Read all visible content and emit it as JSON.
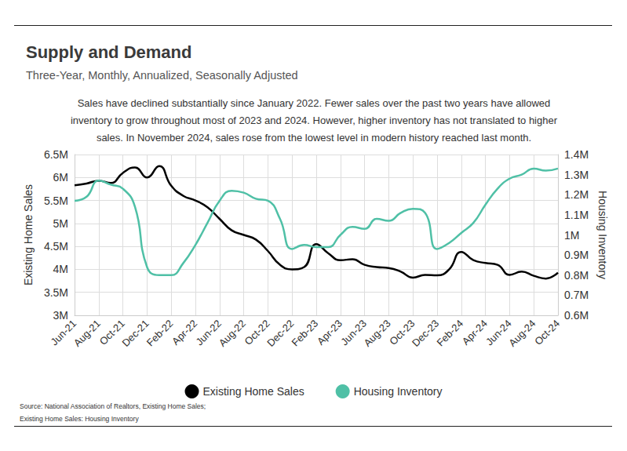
{
  "chart_data": {
    "type": "line",
    "title": "Supply and Demand",
    "subtitle": "Three-Year, Monthly, Annualized, Seasonally Adjusted",
    "description": "Sales have declined substantially since January 2022. Fewer sales over the past two years have allowed inventory to grow throughout most of 2023 and 2024. However, higher inventory has not translated to higher sales. In November 2024, sales rose from the lowest level in modern history reached last month.",
    "source": [
      "Source:  National Association of Realtors, Existing Home Sales;",
      "Existing Home Sales: Housing Inventory"
    ],
    "y_label": "Existing Home Sales",
    "y2_label": "Housing Inventory",
    "categories": [
      "Jun-21",
      null,
      "Aug-21",
      null,
      "Oct-21",
      null,
      "Dec-21",
      null,
      "Feb-22",
      null,
      "Apr-22",
      null,
      "Jun-22",
      null,
      "Aug-22",
      null,
      "Oct-22",
      null,
      "Dec-22",
      null,
      "Feb-23",
      null,
      "Apr-23",
      null,
      "Jun-23",
      null,
      "Aug-23",
      null,
      "Oct-23",
      null,
      "Dec-23",
      null,
      "Feb-24",
      null,
      "Apr-24",
      null,
      "Jun-24",
      null,
      "Aug-24",
      null,
      "Oct-24"
    ],
    "series": [
      {
        "name": "Existing Home Sales",
        "color": "#000000",
        "axis": "y",
        "values": [
          5830000,
          5870000,
          5930000,
          5880000,
          6100000,
          6220000,
          6000000,
          6250000,
          5820000,
          5600000,
          5500000,
          5350000,
          5100000,
          4850000,
          4750000,
          4650000,
          4400000,
          4100000,
          4000000,
          4050000,
          4550000,
          4350000,
          4200000,
          4220000,
          4100000,
          4050000,
          4030000,
          3950000,
          3820000,
          3880000,
          3870000,
          4000000,
          4380000,
          4200000,
          4140000,
          4100000,
          3880000,
          3950000,
          3860000,
          3800000,
          3930000
        ]
      },
      {
        "name": "Housing Inventory",
        "color": "#4fc0a6",
        "axis": "y2",
        "values": [
          1170000,
          1190000,
          1270000,
          1250000,
          1230000,
          1140000,
          840000,
          800000,
          800000,
          860000,
          950000,
          1060000,
          1170000,
          1220000,
          1210000,
          1180000,
          1170000,
          1080000,
          930000,
          950000,
          940000,
          940000,
          1000000,
          1040000,
          1030000,
          1080000,
          1070000,
          1110000,
          1130000,
          1110000,
          930000,
          960000,
          1010000,
          1060000,
          1150000,
          1230000,
          1280000,
          1300000,
          1330000,
          1320000,
          1330000
        ]
      }
    ],
    "ylim": [
      3000000,
      6500000
    ],
    "yticks": [
      {
        "value": 3000000,
        "label": "3M"
      },
      {
        "value": 3500000,
        "label": "3.5M"
      },
      {
        "value": 4000000,
        "label": "4M"
      },
      {
        "value": 4500000,
        "label": "4.5M"
      },
      {
        "value": 5000000,
        "label": "5M"
      },
      {
        "value": 5500000,
        "label": "5.5M"
      },
      {
        "value": 6000000,
        "label": "6M"
      },
      {
        "value": 6500000,
        "label": "6.5M"
      }
    ],
    "y2lim": [
      600000,
      1400000
    ],
    "y2ticks": [
      {
        "value": 600000,
        "label": "0.6M"
      },
      {
        "value": 700000,
        "label": "0.7M"
      },
      {
        "value": 800000,
        "label": "0.8M"
      },
      {
        "value": 900000,
        "label": "0.9M"
      },
      {
        "value": 1000000,
        "label": "1M"
      },
      {
        "value": 1100000,
        "label": "1.1M"
      },
      {
        "value": 1200000,
        "label": "1.2M"
      },
      {
        "value": 1300000,
        "label": "1.3M"
      },
      {
        "value": 1400000,
        "label": "1.4M"
      }
    ],
    "grid": true,
    "legend": "bottom"
  }
}
